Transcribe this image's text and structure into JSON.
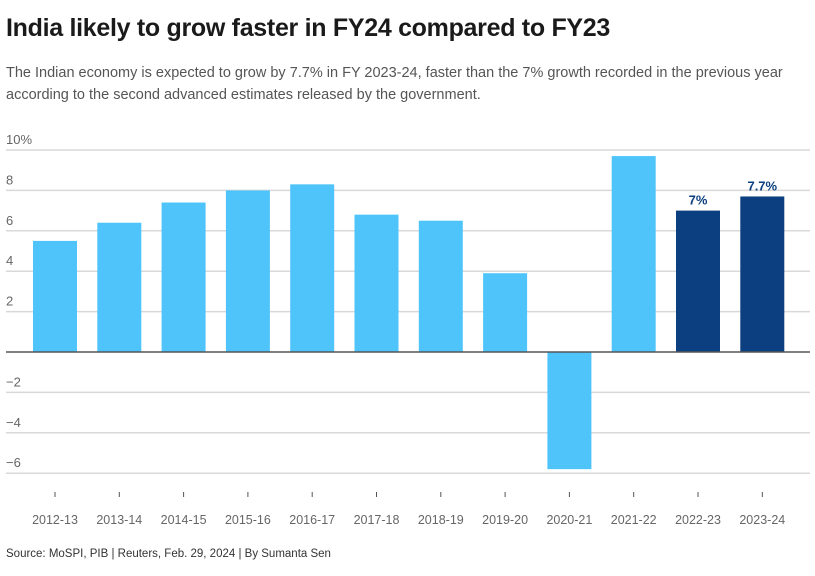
{
  "title": "India likely to grow faster in FY24 compared to FY23",
  "subtitle": "The Indian economy is expected to grow by 7.7% in FY 2023-24, faster than the 7% growth recorded in the previous year according to the second advanced estimates released by the government.",
  "source": "Source: MoSPI, PIB | Reuters, Feb. 29, 2024 | By Sumanta Sen",
  "colors": {
    "actual": "#4fc4fb",
    "estimate": "#0b3f7f",
    "grid": "#d9d9d9",
    "zero_line": "#555555",
    "tick_label": "#666666",
    "data_label": "#0b3f7f"
  },
  "chart_data": {
    "type": "bar",
    "title": "India likely to grow faster in FY24 compared to FY23",
    "xlabel": "",
    "ylabel": "",
    "categories": [
      "2012-13",
      "2013-14",
      "2014-15",
      "2015-16",
      "2016-17",
      "2017-18",
      "2018-19",
      "2019-20",
      "2020-21",
      "2021-22",
      "2022-23",
      "2023-24"
    ],
    "values": [
      5.5,
      6.4,
      7.4,
      8.0,
      8.3,
      6.8,
      6.5,
      3.9,
      -5.8,
      9.7,
      7.0,
      7.7
    ],
    "highlight": [
      false,
      false,
      false,
      false,
      false,
      false,
      false,
      false,
      false,
      false,
      true,
      true
    ],
    "data_labels": [
      "",
      "",
      "",
      "",
      "",
      "",
      "",
      "",
      "",
      "",
      "7%",
      "7.7%"
    ],
    "ylim": [
      -7,
      10
    ],
    "yticks": [
      10,
      8,
      6,
      4,
      2,
      0,
      -2,
      -4,
      -6
    ],
    "ytick_labels": [
      "10%",
      "8",
      "6",
      "4",
      "2",
      "",
      "−2",
      "−4",
      "−6"
    ],
    "grid": true,
    "legend": "none"
  }
}
